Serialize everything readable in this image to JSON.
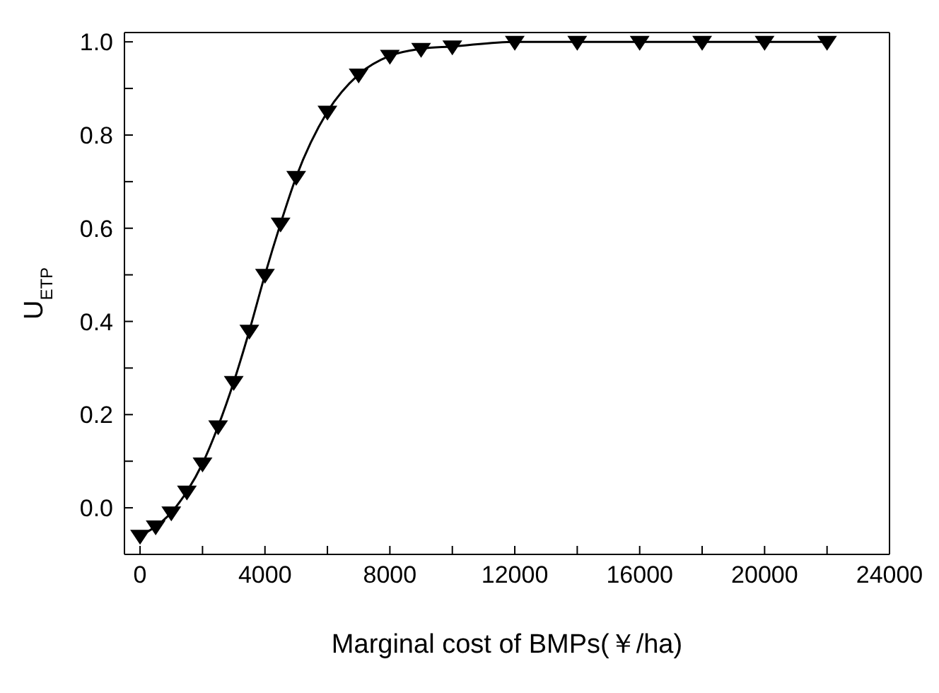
{
  "chart_data": {
    "type": "line",
    "xlabel": "Marginal cost of BMPs(￥/ha)",
    "ylabel": "U$_{ETP}$",
    "x": [
      0,
      500,
      1000,
      1500,
      2000,
      2500,
      3000,
      3500,
      4000,
      4500,
      5000,
      6000,
      7000,
      8000,
      9000,
      10000,
      12000,
      14000,
      16000,
      18000,
      20000,
      22000
    ],
    "series": [
      {
        "color": "#000000",
        "values": [
          -0.06,
          -0.04,
          -0.01,
          0.035,
          0.095,
          0.175,
          0.27,
          0.38,
          0.5,
          0.61,
          0.71,
          0.85,
          0.93,
          0.97,
          0.985,
          0.99,
          1.0,
          1.0,
          1.0,
          1.0,
          1.0,
          1.0
        ]
      }
    ],
    "xlim": [
      -500,
      24000
    ],
    "xticks": [
      0,
      {
        "value": 2000,
        "label": null
      },
      4000,
      {
        "value": 6000,
        "label": null
      },
      8000,
      {
        "value": 10000,
        "label": null
      },
      12000,
      {
        "value": 14000,
        "label": null
      },
      16000,
      {
        "value": 18000,
        "label": null
      },
      20000,
      {
        "value": 22000,
        "label": null
      },
      24000
    ],
    "ylim": [
      -0.1,
      1.02
    ],
    "yticks": [
      {
        "value": -0.1,
        "label": null
      },
      {
        "value": 0,
        "label": "0.0"
      },
      {
        "value": 0.1,
        "label": null
      },
      0.2,
      {
        "value": 0.3,
        "label": null
      },
      0.4,
      {
        "value": 0.5,
        "label": null
      },
      0.6,
      {
        "value": 0.7,
        "label": null
      },
      0.8,
      {
        "value": 0.9,
        "label": null
      },
      {
        "value": 1,
        "label": "1.0"
      }
    ],
    "marker": "triangle",
    "line_style": "solid",
    "grid": false,
    "legend": false
  }
}
